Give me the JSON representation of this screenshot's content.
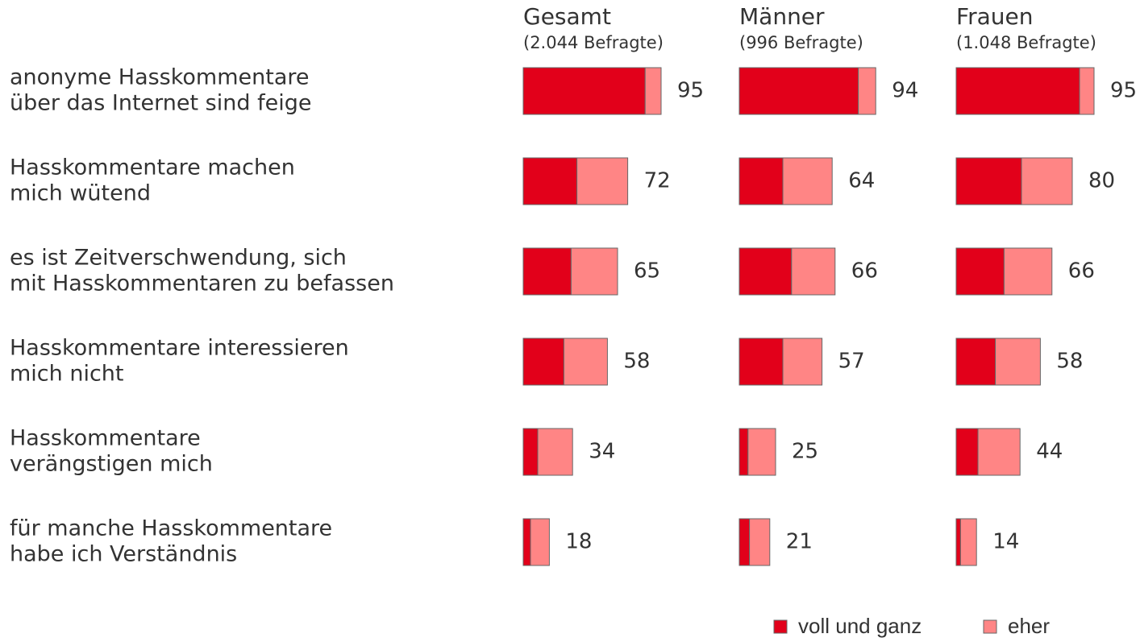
{
  "chart_data": {
    "type": "bar",
    "categories": [
      [
        "anonyme Hasskommentare",
        "über das Internet sind feige"
      ],
      [
        "Hasskommentare machen",
        "mich wütend"
      ],
      [
        "es ist Zeitverschwendung, sich",
        "mit Hasskommentaren zu befassen"
      ],
      [
        "Hasskommentare interessieren",
        "mich nicht"
      ],
      [
        "Hasskommentare",
        "verängstigen mich"
      ],
      [
        "für manche Hasskommentare",
        "habe ich Verständnis"
      ]
    ],
    "xlim": [
      0,
      100
    ],
    "legend": [
      {
        "name": "voll und ganz",
        "color": "#e2001a"
      },
      {
        "name": "eher",
        "color": "#ff8585"
      }
    ],
    "panels": [
      {
        "title": "Gesamt",
        "subtitle": "(2.044 Befragte)",
        "series": [
          {
            "values": [
              84,
              37,
              33,
              28,
              10,
              5
            ]
          },
          {
            "values": [
              11,
              35,
              32,
              30,
              24,
              13
            ]
          }
        ],
        "totals": [
          95,
          72,
          65,
          58,
          34,
          18
        ]
      },
      {
        "title": "Männer",
        "subtitle": "(996 Befragte)",
        "series": [
          {
            "values": [
              82,
              30,
              36,
              30,
              6,
              7
            ]
          },
          {
            "values": [
              12,
              34,
              30,
              27,
              19,
              14
            ]
          }
        ],
        "totals": [
          94,
          64,
          66,
          57,
          25,
          21
        ]
      },
      {
        "title": "Frauen",
        "subtitle": "(1.048 Befragte)",
        "series": [
          {
            "values": [
              85,
              45,
              33,
              27,
              15,
              3
            ]
          },
          {
            "values": [
              10,
              35,
              33,
              31,
              29,
              11
            ]
          }
        ],
        "totals": [
          95,
          80,
          66,
          58,
          44,
          14
        ]
      }
    ]
  }
}
